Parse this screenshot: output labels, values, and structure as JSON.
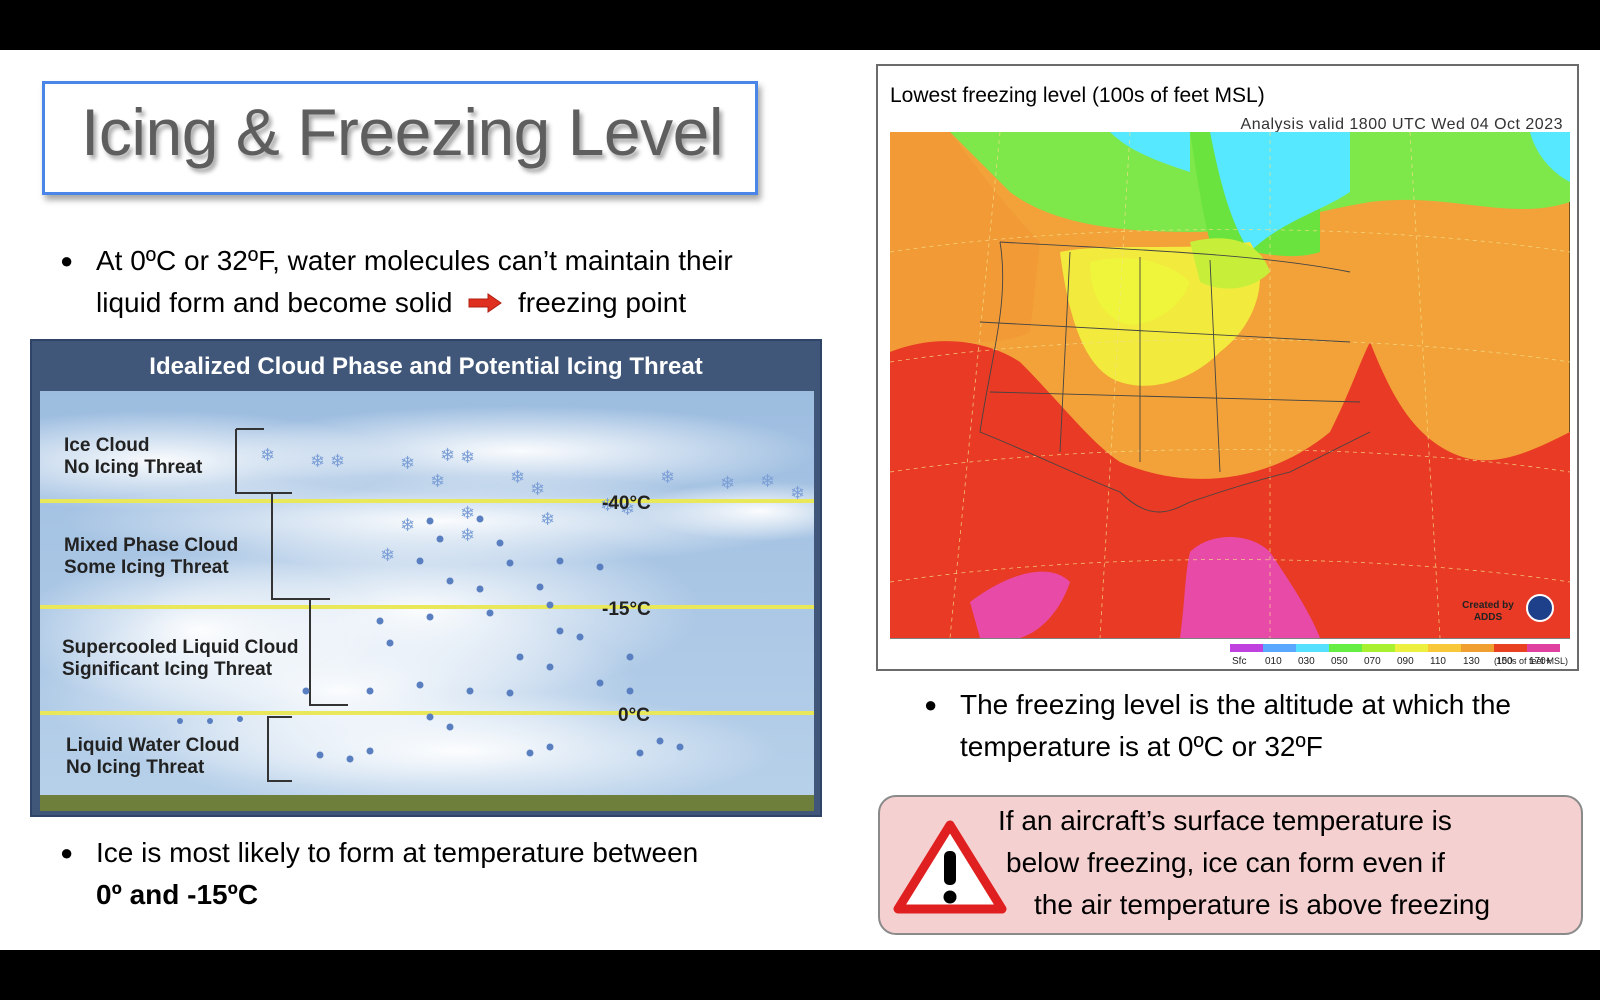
{
  "title": "Icing & Freezing Level",
  "bullets": {
    "b1_line1": "At 0ºC or 32ºF,  water molecules can’t maintain their",
    "b1_line2_a": "liquid form and become solid",
    "b1_line2_b": "freezing point",
    "b2_line1": "Ice is most likely to form at temperature between",
    "b2_line2": "0º and -15ºC",
    "b3_line1": "The freezing level is the altitude at which the",
    "b3_line2": "temperature is at 0ºC or 32ºF",
    "bullet_char": "●"
  },
  "cloud_diagram": {
    "heading": "Idealized Cloud Phase and Potential Icing Threat",
    "zones": [
      {
        "name": "Ice Cloud",
        "threat": "No Icing Threat"
      },
      {
        "name": "Mixed Phase Cloud",
        "threat": "Some Icing Threat"
      },
      {
        "name": "Supercooled Liquid Cloud",
        "threat": "Significant Icing Threat"
      },
      {
        "name": "Liquid Water Cloud",
        "threat": "No Icing Threat"
      }
    ],
    "levels": [
      "-40°C",
      "-15°C",
      "0°C"
    ]
  },
  "map": {
    "title": "Lowest freezing level (100s of feet MSL)",
    "subtitle": "Analysis valid 1800 UTC Wed 04 Oct 2023",
    "credit_line1": "Created by",
    "credit_line2": "ADDS",
    "legend_labels": [
      "Sfc",
      "010",
      "030",
      "050",
      "070",
      "090",
      "110",
      "130",
      "150",
      "170+"
    ],
    "legend_units": "(100s of feet MSL)",
    "legend_colors": [
      "#c040e0",
      "#5aa8ff",
      "#55e0ff",
      "#66ee44",
      "#a8f030",
      "#eef040",
      "#f8c838",
      "#f0a030",
      "#e84020",
      "#e040a0"
    ]
  },
  "warning": {
    "line1": "If an aircraft’s surface temperature is",
    "line2": "below freezing, ice can form even if",
    "line3": "the air temperature is above freezing",
    "icon": "warning-triangle-icon"
  },
  "colors": {
    "title_border": "#4a86e8",
    "arrow": "#e03020",
    "warning_bg": "#f4d0d0",
    "warning_red": "#e02020"
  }
}
